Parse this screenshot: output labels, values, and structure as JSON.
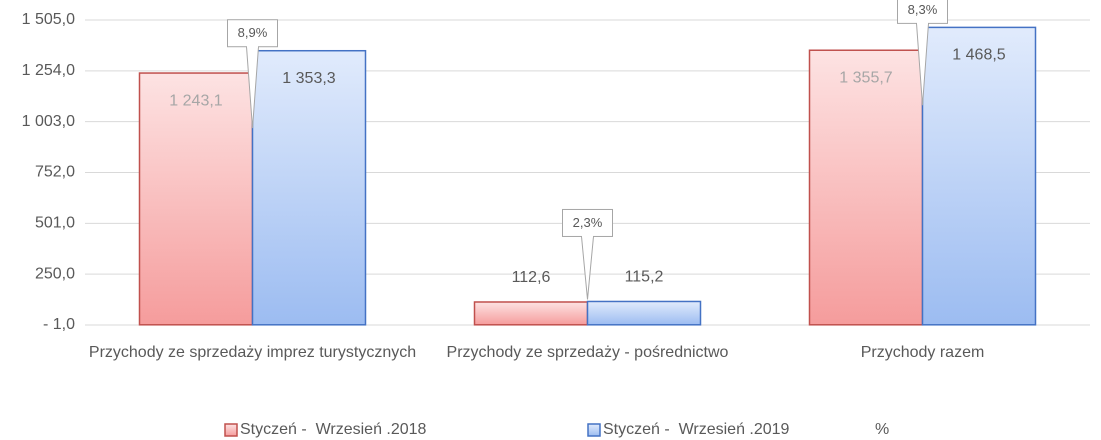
{
  "chart_data": {
    "type": "bar",
    "categories": [
      "Przychody ze sprzedaży imprez turystycznych",
      "Przychody ze sprzedaży - pośrednictwo",
      "Przychody razem"
    ],
    "series": [
      {
        "name": "Styczeń -  Wrzesień .2018",
        "color": "#c0504d",
        "values": [
          1243.1,
          112.6,
          1355.7
        ],
        "value_labels": [
          "1 243,1",
          "112,6",
          "1 355,7"
        ]
      },
      {
        "name": "Styczeń -  Wrzesień .2019",
        "color": "#4472c4",
        "values": [
          1353.3,
          115.2,
          1468.5
        ],
        "value_labels": [
          "1 353,3",
          "115,2",
          "1 468,5"
        ]
      }
    ],
    "percent": {
      "name": "%",
      "values": [
        8.9,
        2.3,
        8.3
      ],
      "value_labels": [
        "8,9%",
        "2,3%",
        "8,3%"
      ]
    },
    "ylim": [
      -1,
      1505
    ],
    "yticks": [
      {
        "value": -1,
        "label": "- 1,0"
      },
      {
        "value": 250,
        "label": "250,0"
      },
      {
        "value": 501,
        "label": "501,0"
      },
      {
        "value": 752,
        "label": "752,0"
      },
      {
        "value": 1003,
        "label": "1 003,0"
      },
      {
        "value": 1254,
        "label": "1 254,0"
      },
      {
        "value": 1505,
        "label": "1 505,0"
      }
    ],
    "grid": true,
    "legend": "bottom"
  }
}
